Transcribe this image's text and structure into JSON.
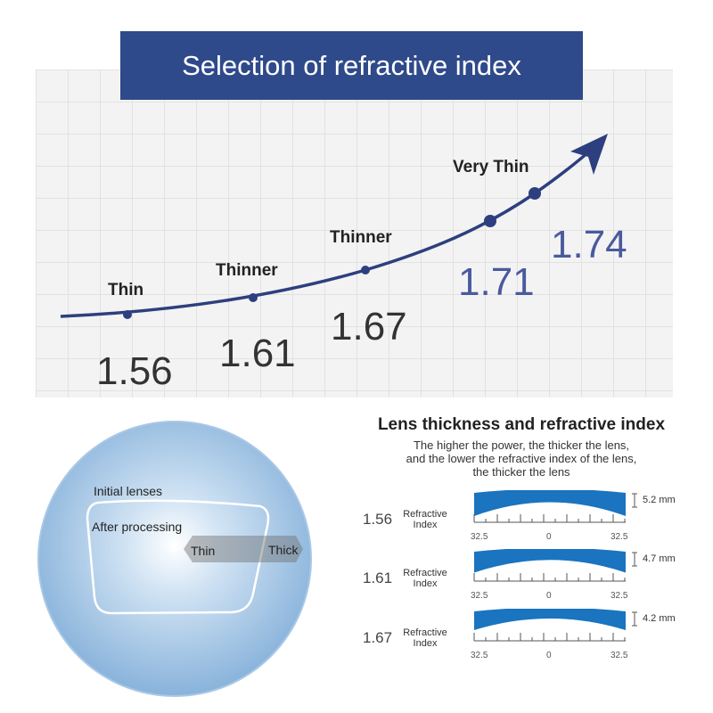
{
  "title": "Selection of refractive index",
  "curve": {
    "points": [
      {
        "label": "Thin",
        "value": "1.56"
      },
      {
        "label": "Thinner",
        "value": "1.61"
      },
      {
        "label": "Thinner",
        "value": "1.67"
      },
      {
        "label": "",
        "value": "1.71"
      },
      {
        "label": "Very Thin",
        "value": "1.74"
      }
    ]
  },
  "lens_diagram": {
    "initial": "Initial lenses",
    "after": "After processing",
    "thin": "Thin",
    "thick": "Thick"
  },
  "thickness": {
    "title": "Lens thickness and refractive index",
    "subtitle": [
      "The higher the power, the thicker the lens,",
      "and the lower the refractive index of the lens,",
      "the thicker the lens"
    ],
    "index_label_1": "Refractive",
    "index_label_2": "Index",
    "scale": [
      "32.5",
      "0",
      "32.5"
    ],
    "rows": [
      {
        "index": "1.56",
        "thickness": "5.2 mm",
        "edge_mm": 5.2
      },
      {
        "index": "1.61",
        "thickness": "4.7 mm",
        "edge_mm": 4.7
      },
      {
        "index": "1.67",
        "thickness": "4.2 mm",
        "edge_mm": 4.2
      }
    ]
  },
  "colors": {
    "banner": "#2f4a8a",
    "curve": "#2d3f7e",
    "lens": "#1a74bf"
  }
}
